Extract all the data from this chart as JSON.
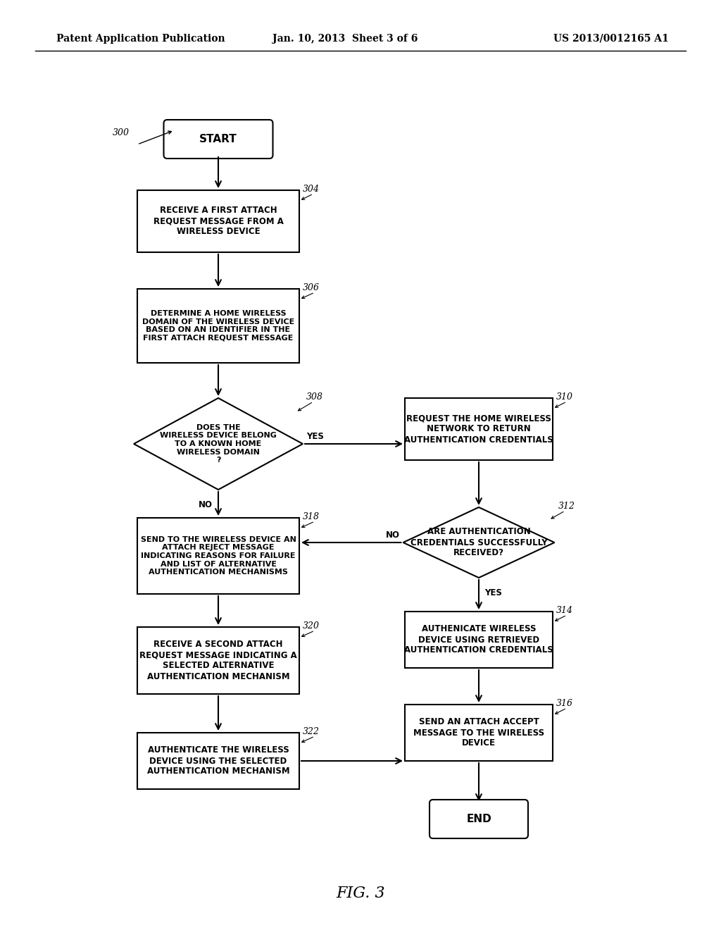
{
  "header_left": "Patent Application Publication",
  "header_center": "Jan. 10, 2013  Sheet 3 of 6",
  "header_right": "US 2013/0012165 A1",
  "figure_label": "FIG. 3",
  "bg_color": "#ffffff"
}
